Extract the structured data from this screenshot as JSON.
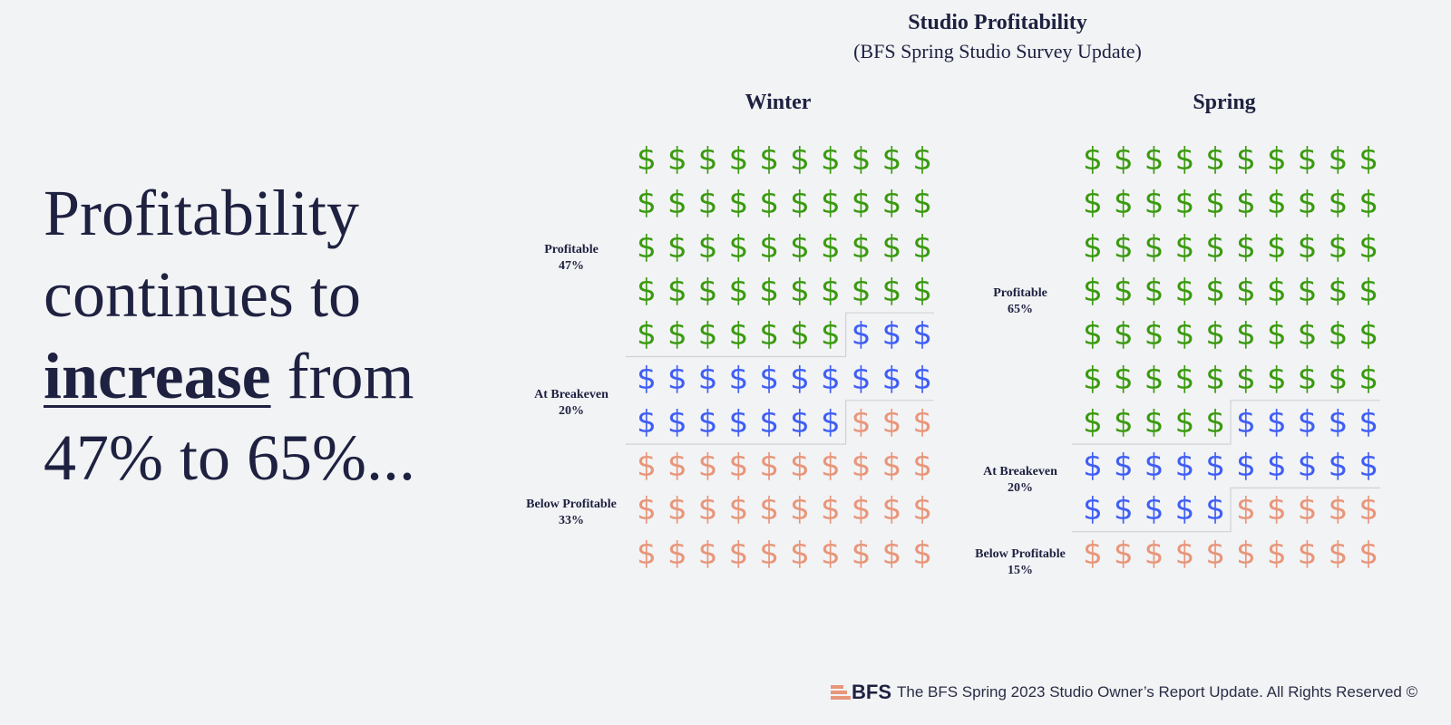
{
  "headline": {
    "part1": "Profitability continues to ",
    "emphasis": "increase",
    "part2": " from 47% to 65%..."
  },
  "chart_data": {
    "type": "waffle",
    "title": "Studio Profitability",
    "subtitle": "(BFS Spring Studio Survey Update)",
    "icon": "dollar-sign",
    "colors": {
      "Profitable": "#3a9a0f",
      "At Breakeven": "#3f5ef5",
      "Below Profitable": "#e8967a"
    },
    "panels": [
      {
        "name": "Winter",
        "categories": [
          {
            "label": "Profitable",
            "value": 47,
            "value_label": "47%"
          },
          {
            "label": "At Breakeven",
            "value": 20,
            "value_label": "20%"
          },
          {
            "label": "Below Profitable",
            "value": 33,
            "value_label": "33%"
          }
        ]
      },
      {
        "name": "Spring",
        "categories": [
          {
            "label": "Profitable",
            "value": 65,
            "value_label": "65%"
          },
          {
            "label": "At Breakeven",
            "value": 20,
            "value_label": "20%"
          },
          {
            "label": "Below Profitable",
            "value": 15,
            "value_label": "15%"
          }
        ]
      }
    ]
  },
  "footer": {
    "logo": "BFS",
    "text": "The BFS Spring 2023 Studio Owner’s Report Update. All Rights Reserved ©"
  }
}
